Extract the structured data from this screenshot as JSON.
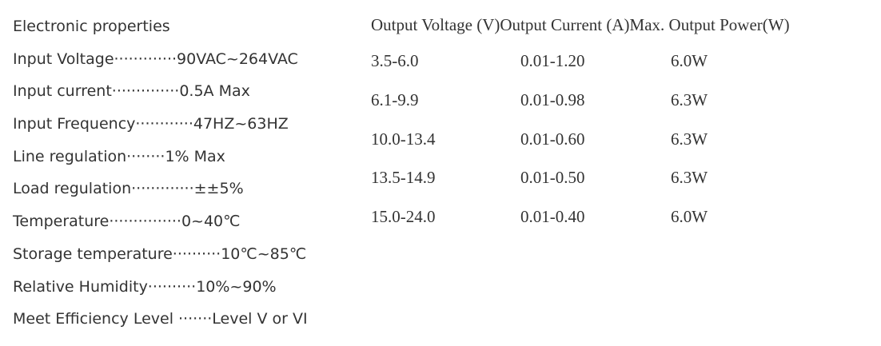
{
  "electronic_properties": {
    "heading": "Electronic properties",
    "lines": [
      "Input Voltage·············90VAC~264VAC",
      "Input current··············0.5A Max",
      "Input Frequency············47HZ~63HZ",
      "Line regulation········1% Max",
      "Load regulation·············±±5%",
      "Temperature···············0~40℃",
      "Storage temperature··········10℃~85℃",
      "Relative Humidity··········10%~90%",
      "Meet Efficiency Level ·······Level V or VI"
    ]
  },
  "output_table": {
    "headers": [
      "Output Voltage (V)",
      "Output Current (A)",
      "Max. Output Power(W)"
    ],
    "rows": [
      [
        "3.5-6.0",
        "0.01-1.20",
        "6.0W"
      ],
      [
        "6.1-9.9",
        "0.01-0.98",
        "6.3W"
      ],
      [
        "10.0-13.4",
        "0.01-0.60",
        "6.3W"
      ],
      [
        "13.5-14.9",
        "0.01-0.50",
        "6.3W"
      ],
      [
        "15.0-24.0",
        "0.01-0.40",
        "6.0W"
      ]
    ]
  }
}
